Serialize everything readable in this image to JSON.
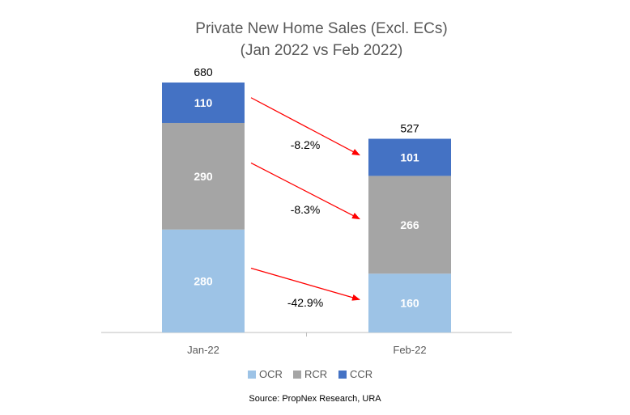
{
  "chart_data": {
    "type": "bar",
    "stacked": true,
    "title_lines": [
      "Private New Home Sales (Excl. ECs)",
      "(Jan 2022 vs Feb 2022)"
    ],
    "categories": [
      "Jan-22",
      "Feb-22"
    ],
    "series": [
      {
        "name": "OCR",
        "values": [
          280,
          160
        ],
        "color": "#9DC3E6"
      },
      {
        "name": "RCR",
        "values": [
          290,
          266
        ],
        "color": "#A5A5A5"
      },
      {
        "name": "CCR",
        "values": [
          110,
          101
        ],
        "color": "#4472C4"
      }
    ],
    "totals": [
      680,
      527
    ],
    "changes": [
      {
        "series": "OCR",
        "label": "-42.9%"
      },
      {
        "series": "RCR",
        "label": "-8.3%"
      },
      {
        "series": "CCR",
        "label": "-8.2%"
      }
    ],
    "arrow_color": "#FF0000",
    "legend_position": "bottom",
    "source": "Source: PropNex Research, URA",
    "ylim": [
      0,
      680
    ],
    "grid": false
  }
}
